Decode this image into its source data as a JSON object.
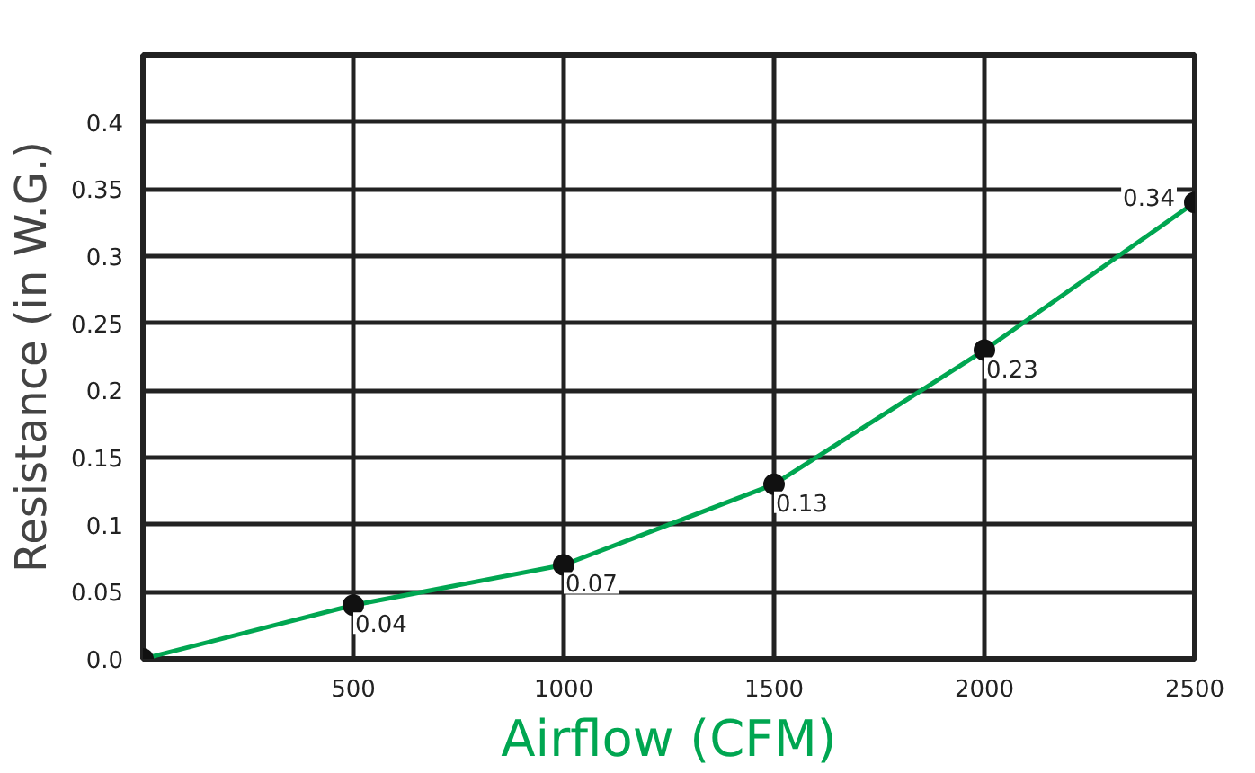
{
  "chart_data": {
    "type": "line",
    "xlabel": "Airflow (CFM)",
    "ylabel": "Resistance (in W.G.)",
    "x": [
      0,
      500,
      1000,
      1500,
      2000,
      2500
    ],
    "series": [
      {
        "color": "#00a651",
        "values": [
          0,
          0.04,
          0.07,
          0.13,
          0.23,
          0.34
        ],
        "value_labels": [
          null,
          "0.04",
          "0.07",
          "0.13",
          "0.23",
          "0.34"
        ]
      }
    ],
    "xlim": [
      0,
      2500
    ],
    "ylim": [
      0,
      0.45
    ],
    "xticks": [
      500,
      1000,
      1500,
      2000,
      2500
    ],
    "yticks": [
      {
        "value": 0,
        "label": "0.0"
      },
      0.05,
      0.1,
      0.15,
      0.2,
      0.25,
      0.3,
      0.35,
      0.4
    ],
    "grid": true,
    "marker": "circle",
    "line_style": "solid"
  }
}
